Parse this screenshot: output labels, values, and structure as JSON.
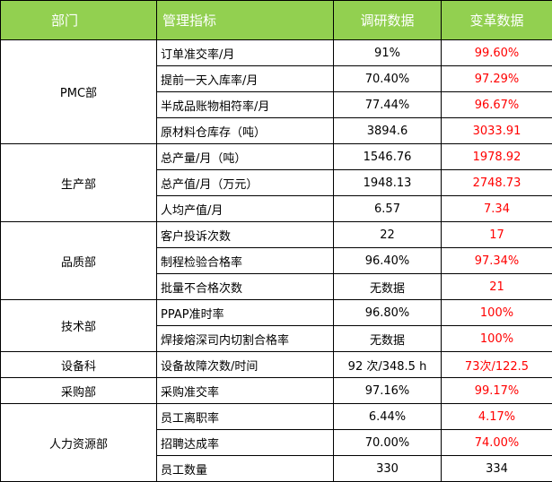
{
  "headers": {
    "department": "部门",
    "metric": "管理指标",
    "survey": "调研数据",
    "reform": "变革数据"
  },
  "sections": [
    {
      "department": "PMC部",
      "rows": [
        {
          "metric": "订单准交率/月",
          "survey": "91%",
          "reform": "99.60%"
        },
        {
          "metric": "提前一天入库率/月",
          "survey": "70.40%",
          "reform": "97.29%"
        },
        {
          "metric": "半成品账物相符率/月",
          "survey": "77.44%",
          "reform": "96.67%"
        },
        {
          "metric": "原材料仓库存（吨）",
          "survey": "3894.6",
          "reform": "3033.91"
        }
      ]
    },
    {
      "department": "生产部",
      "rows": [
        {
          "metric": "总产量/月（吨）",
          "survey": "1546.76",
          "reform": "1978.92"
        },
        {
          "metric": "总产值/月（万元）",
          "survey": "1948.13",
          "reform": "2748.73"
        },
        {
          "metric": "人均产值/月",
          "survey": "6.57",
          "reform": "7.34"
        }
      ]
    },
    {
      "department": "品质部",
      "rows": [
        {
          "metric": "客户投诉次数",
          "survey": "22",
          "reform": "17"
        },
        {
          "metric": "制程检验合格率",
          "survey": "96.40%",
          "reform": "97.34%"
        },
        {
          "metric": "批量不合格次数",
          "survey": "无数据",
          "reform": "21"
        }
      ]
    },
    {
      "department": "技术部",
      "rows": [
        {
          "metric": "PPAP准时率",
          "survey": "96.80%",
          "reform": "100%"
        },
        {
          "metric": "焊接熔深司内切割合格率",
          "survey": "无数据",
          "reform": "100%"
        }
      ]
    },
    {
      "department": "设备科",
      "rows": [
        {
          "metric": "设备故障次数/时间",
          "survey": "92 次/348.5 h",
          "reform": "73次/122.5"
        }
      ]
    },
    {
      "department": "采购部",
      "rows": [
        {
          "metric": "采购准交率",
          "survey": "97.16%",
          "reform": "99.17%"
        }
      ]
    },
    {
      "department": "人力资源部",
      "rows": [
        {
          "metric": "员工离职率",
          "survey": "6.44%",
          "reform": "4.17%"
        },
        {
          "metric": "招聘达成率",
          "survey": "70.00%",
          "reform": "74.00%"
        },
        {
          "metric": "员工数量",
          "survey": "330",
          "reform": "334"
        }
      ]
    }
  ],
  "colors": {
    "header_background": "#92d050",
    "header_text": "#ffffff",
    "reform_highlight": "#ff0000"
  }
}
